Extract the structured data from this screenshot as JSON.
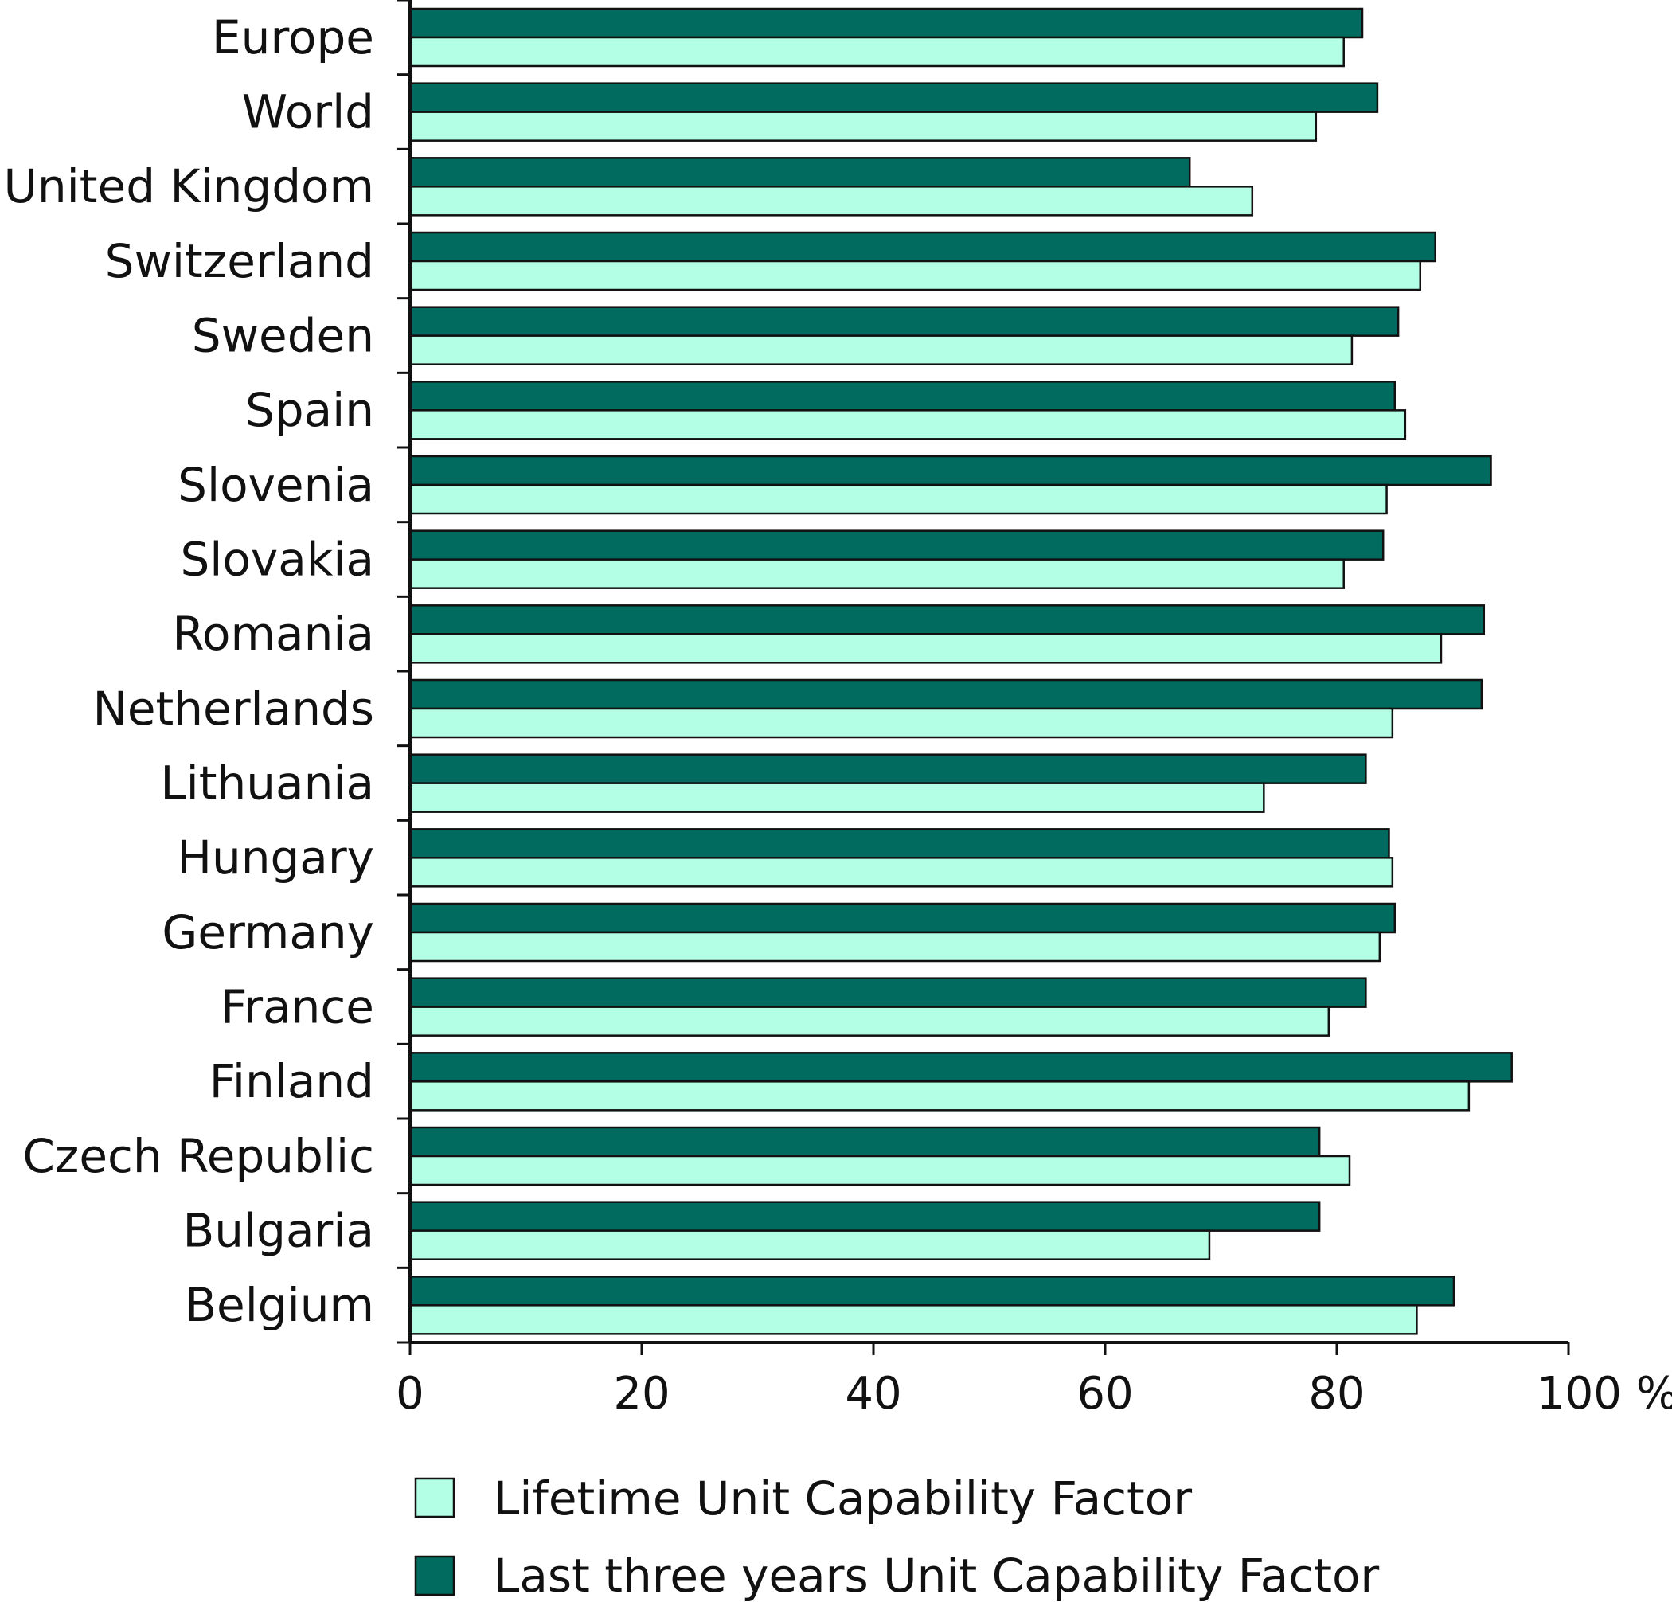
{
  "chart_data": {
    "type": "bar",
    "orientation": "horizontal",
    "categories": [
      "Europe",
      "World",
      "United Kingdom",
      "Switzerland",
      "Sweden",
      "Spain",
      "Slovenia",
      "Slovakia",
      "Romania",
      "Netherlands",
      "Lithuania",
      "Hungary",
      "Germany",
      "France",
      "Finland",
      "Czech Republic",
      "Bulgaria",
      "Belgium"
    ],
    "series": [
      {
        "name": "Last three years Unit Capability Factor",
        "color": "#006b5e",
        "values": [
          82.2,
          83.5,
          67.3,
          88.5,
          85.3,
          85.0,
          93.3,
          84.0,
          92.7,
          92.5,
          82.5,
          84.5,
          85.0,
          82.5,
          95.1,
          78.5,
          78.5,
          90.1
        ]
      },
      {
        "name": "Lifetime Unit Capability Factor",
        "color": "#b3ffe6",
        "values": [
          80.6,
          78.2,
          72.7,
          87.2,
          81.3,
          85.9,
          84.3,
          80.6,
          89.0,
          84.8,
          73.7,
          84.8,
          83.7,
          79.3,
          91.4,
          81.1,
          69.0,
          86.9
        ]
      }
    ],
    "x_ticks": [
      "0",
      "20",
      "40",
      "60",
      "80",
      "100 %"
    ],
    "xlim": [
      0,
      100
    ],
    "grid": false,
    "legend_position": "bottom-left"
  }
}
